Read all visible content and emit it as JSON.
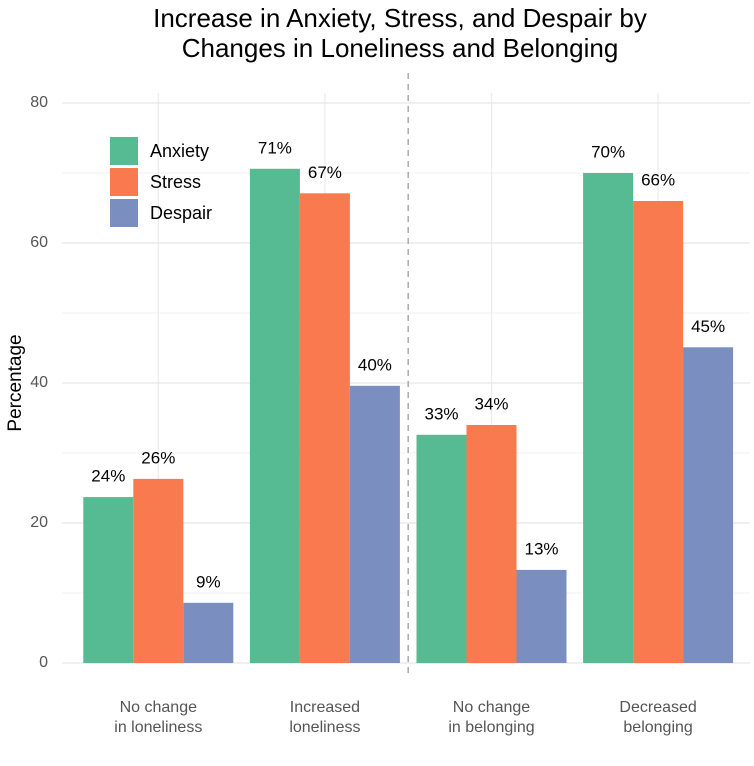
{
  "chart_data": {
    "type": "bar",
    "title": "Increase in Anxiety, Stress, and Despair by\nChanges in Loneliness and Belonging",
    "y_label": "Percentage",
    "categories": [
      "No change\nin loneliness",
      "Increased\nloneliness",
      "No change\nin belonging",
      "Decreased\nbelonging"
    ],
    "series": [
      {
        "name": "Anxiety",
        "color": "#56ba92",
        "values": [
          23.7,
          70.6,
          32.6,
          70.0
        ],
        "value_labels": [
          "24%",
          "71%",
          "33%",
          "70%"
        ]
      },
      {
        "name": "Stress",
        "color": "#f97a4f",
        "values": [
          26.3,
          67.1,
          34.0,
          66.0
        ],
        "value_labels": [
          "26%",
          "67%",
          "34%",
          "66%"
        ]
      },
      {
        "name": "Despair",
        "color": "#7b8ec0",
        "values": [
          8.6,
          39.6,
          13.3,
          45.1
        ],
        "value_labels": [
          "9%",
          "40%",
          "13%",
          "45%"
        ]
      }
    ],
    "ylim": [
      0,
      80
    ],
    "yticks": [
      0,
      20,
      40,
      60,
      80
    ],
    "grid": true,
    "legend": "top-left"
  }
}
